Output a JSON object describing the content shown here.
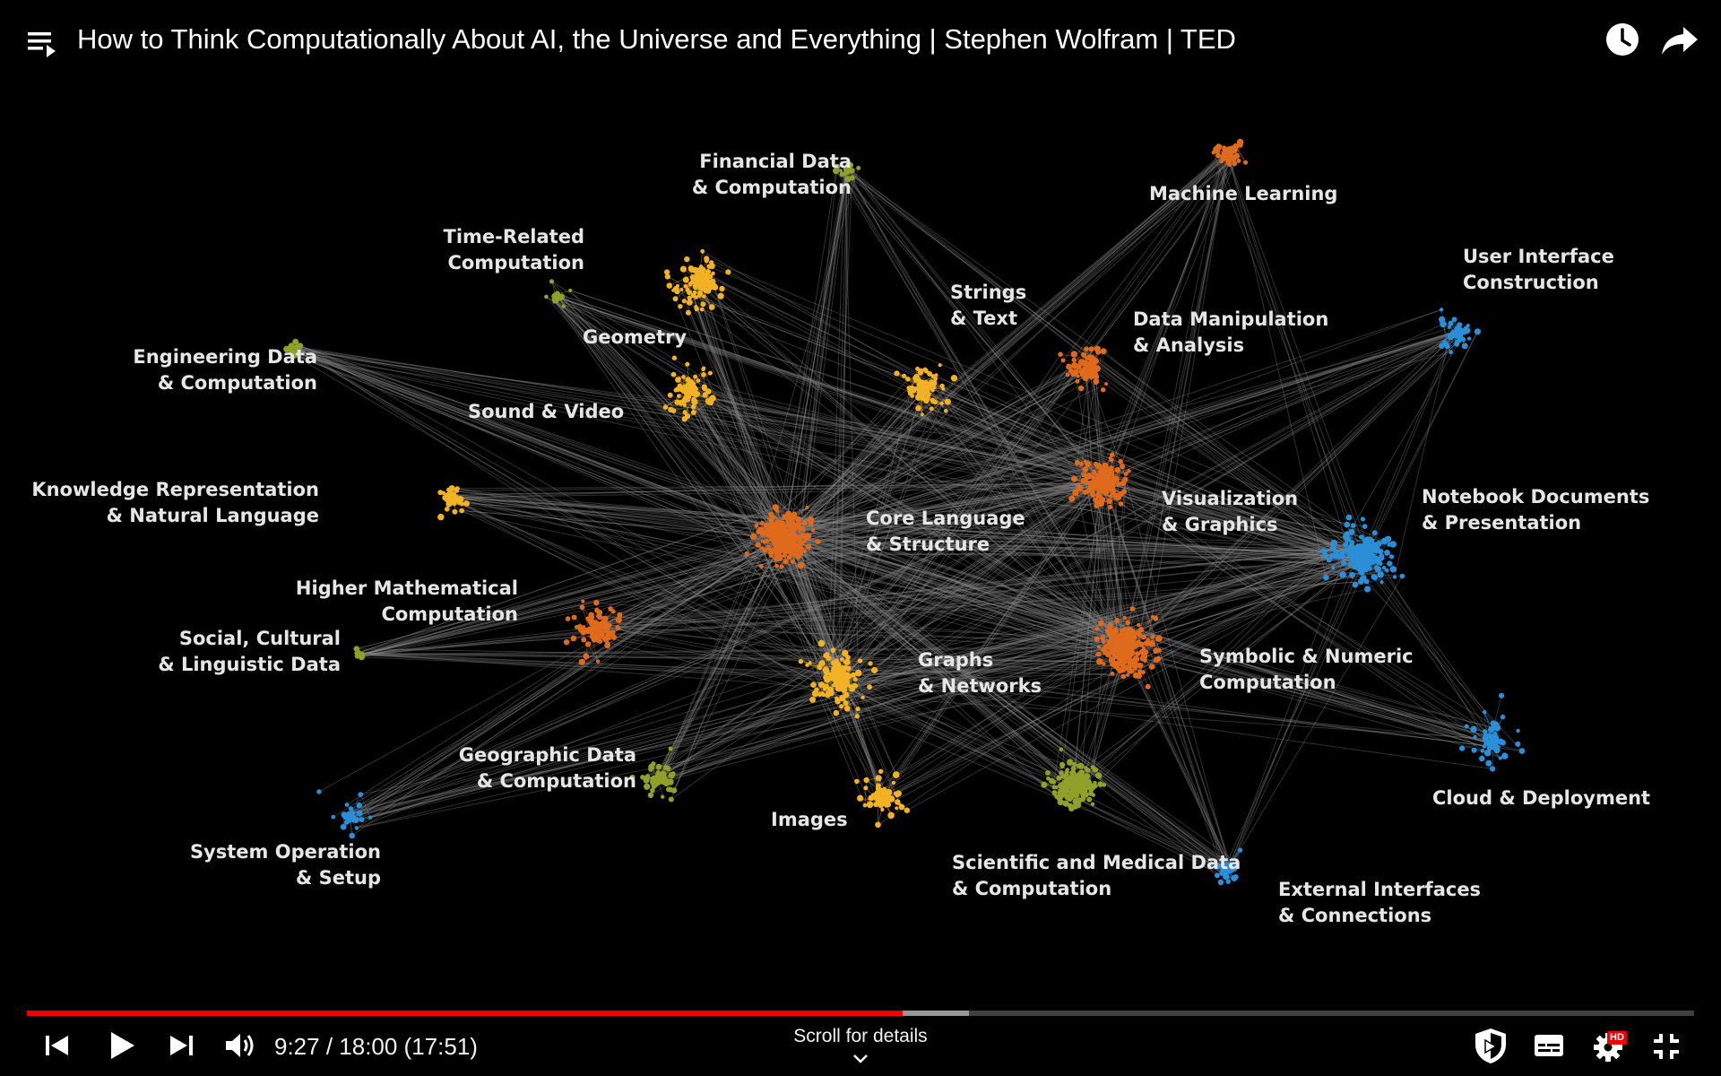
{
  "header": {
    "title": "How to Think Computationally About AI, the Universe and Everything | Stephen Wolfram | TED",
    "icons": [
      "playlist-icon",
      "clock-icon",
      "share-arrow-icon"
    ]
  },
  "video": {
    "clusters": [
      {
        "id": "financial",
        "label": "Financial Data\n& Computation",
        "color": "#8fa12a"
      },
      {
        "id": "machine-learning",
        "label": "Machine Learning",
        "color": "#e06a1c"
      },
      {
        "id": "time",
        "label": "Time-Related\nComputation",
        "color": "#8fa12a"
      },
      {
        "id": "user-interface",
        "label": "User Interface\nConstruction",
        "color": "#2a8fd6"
      },
      {
        "id": "strings",
        "label": "Strings\n& Text",
        "color": "#f2b224"
      },
      {
        "id": "data-manipulation",
        "label": "Data Manipulation\n& Analysis",
        "color": "#e06a1c"
      },
      {
        "id": "geometry",
        "label": "Geometry",
        "color": "#f2b224"
      },
      {
        "id": "engineering",
        "label": "Engineering Data\n& Computation",
        "color": "#8fa12a"
      },
      {
        "id": "sound",
        "label": "Sound & Video",
        "color": "#f2b224"
      },
      {
        "id": "knowledge",
        "label": "Knowledge Representation\n& Natural Language",
        "color": "#f2b224"
      },
      {
        "id": "core",
        "label": "Core Language\n& Structure",
        "color": "#e06a1c"
      },
      {
        "id": "visualization",
        "label": "Visualization\n& Graphics",
        "color": "#e06a1c"
      },
      {
        "id": "notebook",
        "label": "Notebook Documents\n& Presentation",
        "color": "#2a8fd6"
      },
      {
        "id": "higher-math",
        "label": "Higher Mathematical\nComputation",
        "color": "#e06a1c"
      },
      {
        "id": "social",
        "label": "Social, Cultural\n& Linguistic Data",
        "color": "#8fa12a"
      },
      {
        "id": "graphs",
        "label": "Graphs\n& Networks",
        "color": "#f2b224"
      },
      {
        "id": "symbolic",
        "label": "Symbolic & Numeric\nComputation",
        "color": "#e06a1c"
      },
      {
        "id": "geographic",
        "label": "Geographic Data\n& Computation",
        "color": "#8fa12a"
      },
      {
        "id": "cloud",
        "label": "Cloud & Deployment",
        "color": "#2a8fd6"
      },
      {
        "id": "images",
        "label": "Images",
        "color": "#f2b224"
      },
      {
        "id": "scientific",
        "label": "Scientific and Medical Data\n& Computation",
        "color": "#8fa12a"
      },
      {
        "id": "system",
        "label": "System Operation\n& Setup",
        "color": "#2a8fd6"
      },
      {
        "id": "external",
        "label": "External Interfaces\n& Connections",
        "color": "#2a8fd6"
      }
    ]
  },
  "player": {
    "time_display": "9:27 / 18:00 (17:51)",
    "progress_fraction": 0.525,
    "buffered_fraction": 0.565,
    "scroll_hint": "Scroll for details",
    "hd_badge": "HD",
    "colors": {
      "played": "#ee0000"
    },
    "icons": [
      "previous-icon",
      "play-icon",
      "next-icon",
      "volume-icon",
      "chevron-down-icon",
      "shield-icon",
      "subtitles-icon",
      "settings-gear-icon",
      "exit-fullscreen-icon"
    ]
  }
}
